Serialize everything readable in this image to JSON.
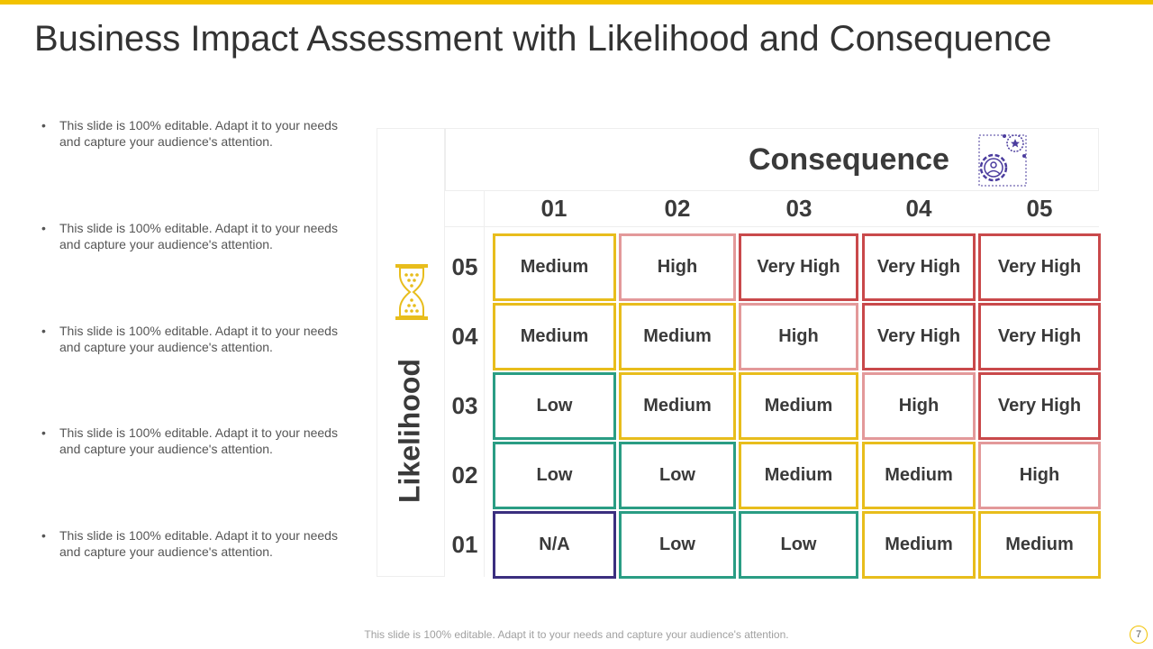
{
  "title": "Business Impact Assessment with Likelihood and Consequence",
  "bullets": [
    {
      "marker": "•",
      "text": "This slide is 100% editable.  Adapt it to your needs and capture your audience's attention."
    },
    {
      "marker": "•",
      "text": "This slide is 100% editable.  Adapt it to your needs and capture your audience's attention."
    },
    {
      "marker": "•",
      "text": "This slide is 100% editable.  Adapt it to your needs and capture your audience's attention."
    },
    {
      "marker": "•",
      "text": "This slide is 100% editable.  Adapt it to your needs and capture your audience's attention."
    },
    {
      "marker": "•",
      "text": "This slide is 100% editable.  Adapt it to your needs and capture your audience's attention."
    }
  ],
  "matrix": {
    "consequence_label": "Consequence",
    "likelihood_label": "Likelihood",
    "consequence_icon": "gear-person-icon",
    "likelihood_icon": "hourglass-icon",
    "columns": [
      "01",
      "02",
      "03",
      "04",
      "05"
    ],
    "rows": [
      {
        "label": "05",
        "cells": [
          "Medium",
          "High",
          "Very High",
          "Very High",
          "Very High"
        ]
      },
      {
        "label": "04",
        "cells": [
          "Medium",
          "Medium",
          "High",
          "Very High",
          "Very High"
        ]
      },
      {
        "label": "03",
        "cells": [
          "Low",
          "Medium",
          "Medium",
          "High",
          "Very High"
        ]
      },
      {
        "label": "02",
        "cells": [
          "Low",
          "Low",
          "Medium",
          "Medium",
          "High"
        ]
      },
      {
        "label": "01",
        "cells": [
          "N/A",
          "Low",
          "Low",
          "Medium",
          "Medium"
        ]
      }
    ],
    "level_colors": {
      "N/A": "#3b2f7f",
      "Low": "#2a9d84",
      "Medium": "#e8bd1c",
      "High": "#e3999a",
      "Very High": "#c9494b"
    }
  },
  "footer_note": "This slide is 100% editable. Adapt it to your needs and capture your audience's attention.",
  "page_number": "7",
  "colors": {
    "accent": "#f2c200",
    "icon_purple": "#4b3c9e"
  }
}
